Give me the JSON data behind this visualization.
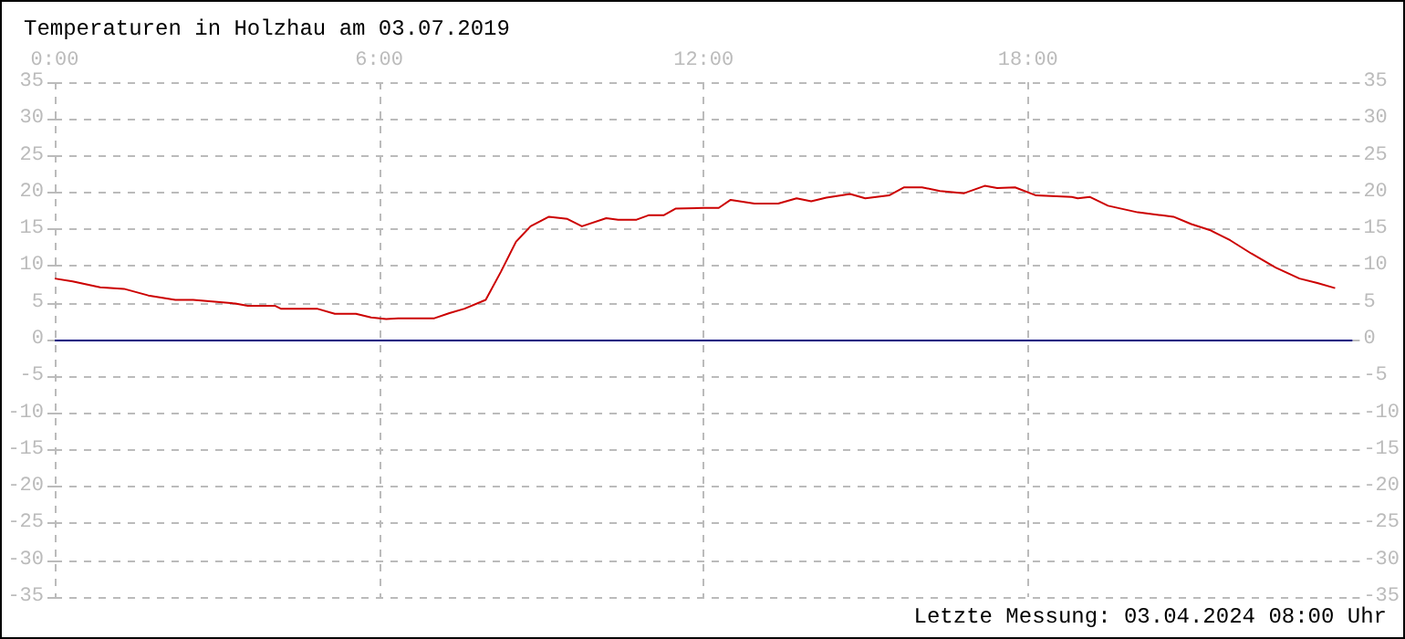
{
  "chart_data": {
    "type": "line",
    "title": "Temperaturen in Holzhau am 03.07.2019",
    "annotations": [
      "Letzte Messung: 03.04.2024 08:00 Uhr"
    ],
    "xlim": [
      0,
      24
    ],
    "xticks": [
      {
        "value": 0,
        "label": "0:00"
      },
      {
        "value": 6,
        "label": "6:00"
      },
      {
        "value": 12,
        "label": "12:00"
      },
      {
        "value": 18,
        "label": "18:00"
      }
    ],
    "ylim": [
      -35,
      35
    ],
    "yticks": [
      -35,
      -30,
      -25,
      -20,
      -15,
      -10,
      -5,
      0,
      5,
      10,
      15,
      20,
      25,
      30,
      35
    ],
    "y2lim": [
      -35,
      35
    ],
    "y2ticks": [
      -35,
      -30,
      -25,
      -20,
      -15,
      -10,
      -5,
      0,
      5,
      10,
      15,
      20,
      25,
      30,
      35
    ],
    "grid": true,
    "line_style": "solid",
    "ref_lines": [
      {
        "axis": "y",
        "value": 0,
        "color": "#000080"
      }
    ],
    "series": [
      {
        "color": "#cc0000",
        "x": [
          0,
          0.33,
          0.84,
          1.28,
          1.73,
          2.23,
          2.56,
          3.34,
          3.57,
          4.07,
          4.18,
          4.85,
          5.18,
          5.57,
          5.85,
          6.13,
          6.35,
          7.02,
          7.3,
          7.58,
          7.97,
          8.25,
          8.53,
          8.8,
          9.14,
          9.48,
          9.75,
          10.2,
          10.42,
          10.76,
          10.98,
          11.26,
          11.48,
          12.0,
          12.28,
          12.5,
          12.94,
          13.38,
          13.72,
          13.99,
          14.27,
          14.71,
          14.99,
          15.43,
          15.71,
          16.04,
          16.37,
          16.82,
          17.2,
          17.43,
          17.76,
          18.15,
          18.81,
          18.92,
          19.14,
          19.48,
          20.03,
          20.47,
          20.69,
          21.02,
          21.36,
          21.74,
          22.13,
          22.58,
          23.02,
          23.35,
          23.68
        ],
        "values": [
          8.3,
          7.9,
          7.1,
          6.9,
          6.0,
          5.4,
          5.4,
          4.9,
          4.6,
          4.6,
          4.2,
          4.2,
          3.5,
          3.5,
          3.0,
          2.8,
          2.9,
          2.9,
          3.6,
          4.2,
          5.4,
          9.2,
          13.3,
          15.4,
          16.7,
          16.4,
          15.4,
          16.5,
          16.3,
          16.3,
          16.9,
          16.9,
          17.8,
          17.9,
          17.9,
          19.0,
          18.5,
          18.5,
          19.2,
          18.8,
          19.3,
          19.8,
          19.2,
          19.6,
          20.7,
          20.7,
          20.2,
          19.9,
          20.9,
          20.6,
          20.7,
          19.6,
          19.4,
          19.2,
          19.4,
          18.2,
          17.3,
          16.9,
          16.7,
          15.7,
          14.9,
          13.5,
          11.7,
          9.8,
          8.3,
          7.7,
          7.0
        ]
      }
    ]
  }
}
